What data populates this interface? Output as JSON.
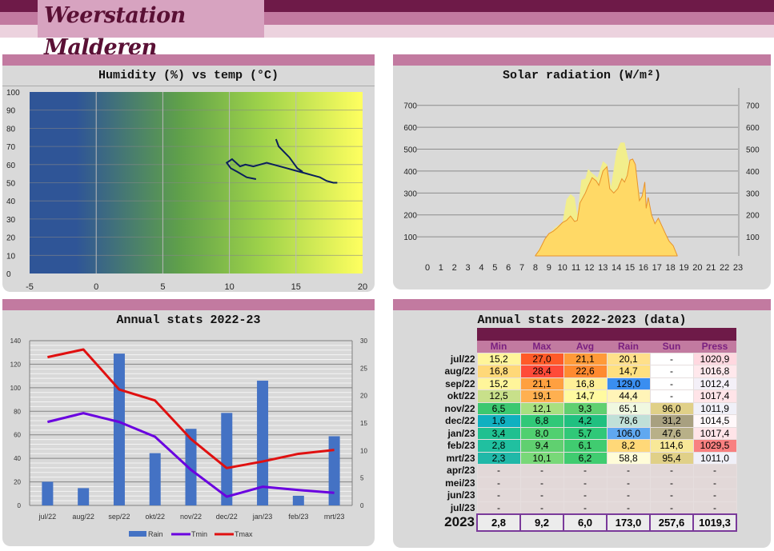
{
  "header": {
    "title": "Weerstation Malderen"
  },
  "colors": {
    "dark": "#6e1a48",
    "mid": "#c27aa0",
    "light": "#ecd2de",
    "rain": "#4472c4",
    "tmin": "#6a00e0",
    "tmax": "#e01010"
  },
  "humidity_chart": {
    "title": "Humidity (%) vs temp (°C)",
    "type": "line",
    "xlim": [
      -5,
      20
    ],
    "ylim": [
      0,
      100
    ],
    "xticks": [
      "-5",
      "0",
      "5",
      "10",
      "15",
      "20"
    ],
    "yticks": [
      "0",
      "10",
      "20",
      "30",
      "40",
      "50",
      "60",
      "70",
      "80",
      "90",
      "100"
    ],
    "trace": [
      [
        12,
        52
      ],
      [
        11.3,
        53
      ],
      [
        10.6,
        56
      ],
      [
        10.1,
        58
      ],
      [
        9.8,
        61
      ],
      [
        10.2,
        63
      ],
      [
        10.5,
        61
      ],
      [
        10.8,
        59
      ],
      [
        11.2,
        60
      ],
      [
        11.8,
        59
      ],
      [
        12.3,
        60
      ],
      [
        12.8,
        61
      ],
      [
        13.3,
        60
      ],
      [
        13.8,
        59
      ],
      [
        14.3,
        58
      ],
      [
        14.8,
        57
      ],
      [
        15.3,
        56
      ],
      [
        15.8,
        55
      ],
      [
        16.3,
        54
      ],
      [
        16.8,
        53
      ],
      [
        17.3,
        51
      ],
      [
        17.8,
        50
      ],
      [
        18.1,
        50
      ]
    ],
    "trace2": [
      [
        13.5,
        74
      ],
      [
        13.7,
        70
      ],
      [
        14.1,
        67
      ],
      [
        14.5,
        64
      ],
      [
        14.8,
        61
      ],
      [
        15.1,
        58
      ],
      [
        15.5,
        56
      ]
    ]
  },
  "solar_chart": {
    "title": "Solar radiation (W/m²)",
    "type": "area",
    "xlim": [
      0,
      23
    ],
    "ylim": [
      13,
      750
    ],
    "xticks": [
      "0",
      "1",
      "2",
      "3",
      "4",
      "5",
      "6",
      "7",
      "8",
      "9",
      "10",
      "11",
      "12",
      "13",
      "14",
      "15",
      "16",
      "17",
      "18",
      "19",
      "20",
      "21",
      "22",
      "23"
    ],
    "yticks": [
      "100",
      "200",
      "300",
      "400",
      "500",
      "600",
      "700"
    ],
    "max_series": [
      [
        8,
        15
      ],
      [
        8.5,
        70
      ],
      [
        9,
        115
      ],
      [
        9.5,
        145
      ],
      [
        10,
        165
      ],
      [
        10.3,
        270
      ],
      [
        10.6,
        295
      ],
      [
        10.9,
        280
      ],
      [
        11.1,
        200
      ],
      [
        11.4,
        360
      ],
      [
        11.7,
        365
      ],
      [
        11.9,
        410
      ],
      [
        12.2,
        390
      ],
      [
        12.6,
        370
      ],
      [
        13,
        445
      ],
      [
        13.3,
        430
      ],
      [
        13.6,
        330
      ],
      [
        14,
        490
      ],
      [
        14.3,
        530
      ],
      [
        14.6,
        530
      ],
      [
        14.9,
        450
      ],
      [
        15.2,
        320
      ],
      [
        15.4,
        420
      ],
      [
        15.7,
        300
      ],
      [
        16,
        220
      ],
      [
        16.5,
        175
      ],
      [
        17,
        120
      ],
      [
        17.5,
        70
      ],
      [
        17.8,
        15
      ]
    ],
    "actual_series": [
      [
        8,
        15
      ],
      [
        8.3,
        40
      ],
      [
        8.7,
        90
      ],
      [
        9,
        115
      ],
      [
        9.3,
        125
      ],
      [
        9.6,
        140
      ],
      [
        10,
        165
      ],
      [
        10.3,
        175
      ],
      [
        10.6,
        195
      ],
      [
        10.9,
        170
      ],
      [
        11.1,
        175
      ],
      [
        11.3,
        255
      ],
      [
        11.7,
        300
      ],
      [
        11.9,
        330
      ],
      [
        12.2,
        370
      ],
      [
        12.5,
        355
      ],
      [
        12.7,
        335
      ],
      [
        13,
        400
      ],
      [
        13.3,
        420
      ],
      [
        13.5,
        320
      ],
      [
        13.8,
        300
      ],
      [
        14.1,
        320
      ],
      [
        14.4,
        365
      ],
      [
        14.6,
        350
      ],
      [
        14.8,
        380
      ],
      [
        15,
        450
      ],
      [
        15.2,
        455
      ],
      [
        15.4,
        430
      ],
      [
        15.7,
        265
      ],
      [
        15.9,
        285
      ],
      [
        16.1,
        350
      ],
      [
        16.2,
        230
      ],
      [
        16.35,
        280
      ],
      [
        16.6,
        200
      ],
      [
        16.85,
        160
      ],
      [
        17.1,
        185
      ],
      [
        17.4,
        145
      ],
      [
        17.7,
        105
      ],
      [
        17.9,
        80
      ],
      [
        18.2,
        60
      ],
      [
        18.5,
        15
      ]
    ]
  },
  "annual_chart": {
    "title": "Annual stats 2022-23",
    "type": "bar+line",
    "categories": [
      "jul/22",
      "aug/22",
      "sep/22",
      "okt/22",
      "nov/22",
      "dec/22",
      "jan/23",
      "feb/23",
      "mrt/23"
    ],
    "ylim_left": [
      0,
      140
    ],
    "ylim_right": [
      0,
      30
    ],
    "yticks_left": [
      "0",
      "20",
      "40",
      "60",
      "80",
      "100",
      "120",
      "140"
    ],
    "yticks_right": [
      "0",
      "5",
      "10",
      "15",
      "20",
      "25",
      "30"
    ],
    "series": [
      {
        "name": "Rain",
        "axis": "left",
        "values": [
          20.1,
          14.7,
          129.0,
          44.4,
          65.1,
          78.6,
          106.0,
          8.2,
          58.8
        ]
      },
      {
        "name": "Tmin",
        "axis": "right",
        "values": [
          15.2,
          16.8,
          15.2,
          12.5,
          6.5,
          1.6,
          3.4,
          2.8,
          2.3
        ]
      },
      {
        "name": "Tmax",
        "axis": "right",
        "values": [
          27.0,
          28.4,
          21.1,
          19.1,
          12.1,
          6.8,
          8.0,
          9.4,
          10.1
        ]
      }
    ],
    "legend": "bottom"
  },
  "table": {
    "title": "Annual stats 2022-2023 (data)",
    "columns": [
      "Min",
      "Max",
      "Avg",
      "Rain",
      "Sun",
      "Press"
    ],
    "rows": [
      {
        "label": "jul/22",
        "values": [
          "15,2",
          "27,0",
          "21,1",
          "20,1",
          "-",
          "1020,9"
        ],
        "colors": [
          "#fff59a",
          "#ff5a28",
          "#ff9a38",
          "#ffe08a",
          "#ffffff",
          "#ffd8e0"
        ]
      },
      {
        "label": "aug/22",
        "values": [
          "16,8",
          "28,4",
          "22,6",
          "14,7",
          "-",
          "1016,8"
        ],
        "colors": [
          "#ffd878",
          "#ff4a38",
          "#ff8a30",
          "#ffe080",
          "#ffffff",
          "#ffe8ec"
        ]
      },
      {
        "label": "sep/22",
        "values": [
          "15,2",
          "21,1",
          "16,8",
          "129,0",
          "-",
          "1012,4"
        ],
        "colors": [
          "#fff59a",
          "#ffa040",
          "#fff098",
          "#3a8ef0",
          "#ffffff",
          "#f4f0f8"
        ]
      },
      {
        "label": "okt/22",
        "values": [
          "12,5",
          "19,1",
          "14,7",
          "44,4",
          "-",
          "1017,4"
        ],
        "colors": [
          "#c8e08a",
          "#ffb050",
          "#fffaa0",
          "#fff4b8",
          "#ffffff",
          "#ffe4e8"
        ]
      },
      {
        "label": "nov/22",
        "values": [
          "6,5",
          "12,1",
          "9,3",
          "65,1",
          "96,0",
          "1011,9"
        ],
        "colors": [
          "#3cc870",
          "#a8e080",
          "#60d070",
          "#f0f8e0",
          "#e0d088",
          "#f0f0f8"
        ]
      },
      {
        "label": "dec/22",
        "values": [
          "1,6",
          "6,8",
          "4,2",
          "78,6",
          "31,2",
          "1014,5"
        ],
        "colors": [
          "#10b0c0",
          "#30c878",
          "#20c080",
          "#c0e0d8",
          "#a8a080",
          "#fff8fa"
        ]
      },
      {
        "label": "jan/23",
        "values": [
          "3,4",
          "8,0",
          "5,7",
          "106,0",
          "47,6",
          "1017,4"
        ],
        "colors": [
          "#20c090",
          "#50d070",
          "#30c878",
          "#60a8f0",
          "#b8b088",
          "#ffe4e8"
        ]
      },
      {
        "label": "feb/23",
        "values": [
          "2,8",
          "9,4",
          "6,1",
          "8,2",
          "114,6",
          "1029,5"
        ],
        "colors": [
          "#20c0a0",
          "#60d070",
          "#40cc70",
          "#ffd878",
          "#f8e898",
          "#f88080"
        ]
      },
      {
        "label": "mrt/23",
        "values": [
          "2,3",
          "10,1",
          "6,2",
          "58,8",
          "95,4",
          "1011,0"
        ],
        "colors": [
          "#20b8a8",
          "#78d878",
          "#40cc70",
          "#fffcd8",
          "#e0d088",
          "#f0f0f8"
        ]
      },
      {
        "label": "apr/23",
        "values": [
          "-",
          "-",
          "-",
          "-",
          "-",
          "-"
        ],
        "colors": [
          "#e2d8d8",
          "#e2d8d8",
          "#e2d8d8",
          "#e2d8d8",
          "#e2d8d8",
          "#e2d8d8"
        ]
      },
      {
        "label": "mei/23",
        "values": [
          "-",
          "-",
          "-",
          "-",
          "-",
          "-"
        ],
        "colors": [
          "#e2d8d8",
          "#e2d8d8",
          "#e2d8d8",
          "#e2d8d8",
          "#e2d8d8",
          "#e2d8d8"
        ]
      },
      {
        "label": "jun/23",
        "values": [
          "-",
          "-",
          "-",
          "-",
          "-",
          "-"
        ],
        "colors": [
          "#e2d8d8",
          "#e2d8d8",
          "#e2d8d8",
          "#e2d8d8",
          "#e2d8d8",
          "#e2d8d8"
        ]
      },
      {
        "label": "jul/23",
        "values": [
          "-",
          "-",
          "-",
          "-",
          "-",
          "-"
        ],
        "colors": [
          "#e2d8d8",
          "#e2d8d8",
          "#e2d8d8",
          "#e2d8d8",
          "#e2d8d8",
          "#e2d8d8"
        ]
      }
    ],
    "total": {
      "label": "2023",
      "values": [
        "2,8",
        "9,2",
        "6,0",
        "173,0",
        "257,6",
        "1019,3"
      ]
    }
  }
}
